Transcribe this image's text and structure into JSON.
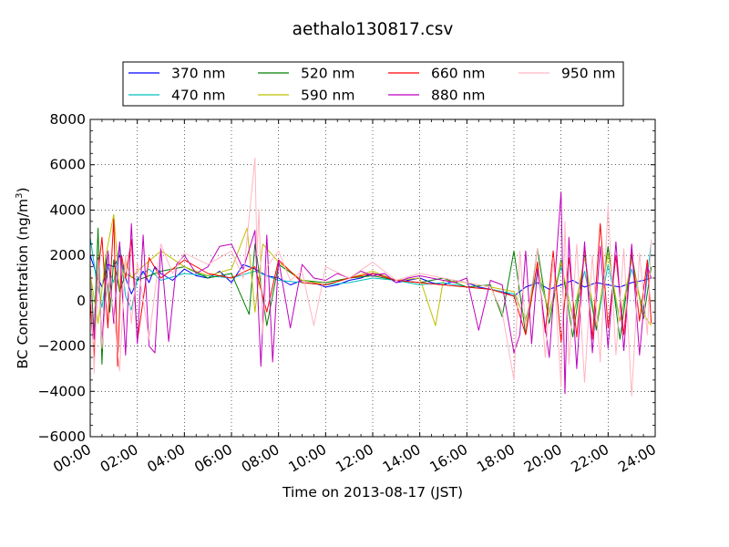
{
  "chart_data": {
    "type": "line",
    "title": "aethalo130817.csv",
    "xlabel": "Time on 2013-08-17 (JST)",
    "ylabel": "BC Concentration (ng/m³)",
    "ylabel_main": "BC Concentration (ng/m",
    "ylabel_sup": "3",
    "ylabel_end": ")",
    "xlim": [
      "00:00",
      "24:00"
    ],
    "ylim": [
      -6000,
      8000
    ],
    "x_ticks": [
      "00:00",
      "02:00",
      "04:00",
      "06:00",
      "08:00",
      "10:00",
      "12:00",
      "14:00",
      "16:00",
      "18:00",
      "20:00",
      "22:00",
      "24:00"
    ],
    "y_ticks": [
      8000,
      6000,
      4000,
      2000,
      0,
      -2000,
      -4000,
      -6000
    ],
    "y_tick_labels": [
      "8000",
      "6000",
      "4000",
      "2000",
      "0",
      "−2000",
      "−4000",
      "−6000"
    ],
    "grid": true,
    "legend_position": "top",
    "series": [
      {
        "name": "370 nm",
        "color": "#0000ff",
        "x": [
          "00:00",
          "00:15",
          "00:30",
          "00:45",
          "01:00",
          "01:15",
          "01:30",
          "01:45",
          "02:00",
          "02:15",
          "02:30",
          "02:45",
          "03:00",
          "03:30",
          "04:00",
          "04:30",
          "05:00",
          "05:30",
          "06:00",
          "06:30",
          "07:00",
          "07:30",
          "08:00",
          "08:30",
          "09:00",
          "09:30",
          "10:00",
          "10:30",
          "11:00",
          "11:30",
          "12:00",
          "12:30",
          "13:00",
          "13:30",
          "14:00",
          "14:30",
          "15:00",
          "15:30",
          "16:00",
          "16:30",
          "17:00",
          "17:30",
          "18:00",
          "18:30",
          "19:00",
          "19:30",
          "20:00",
          "20:30",
          "21:00",
          "21:30",
          "22:00",
          "22:30",
          "23:00",
          "23:30",
          "23:50"
        ],
        "y": [
          2000,
          1200,
          600,
          1600,
          1500,
          2000,
          1000,
          300,
          900,
          1300,
          800,
          1500,
          1200,
          900,
          1400,
          1100,
          1000,
          1300,
          800,
          1600,
          1400,
          1100,
          1000,
          700,
          900,
          800,
          600,
          700,
          900,
          1000,
          1200,
          1100,
          800,
          900,
          1000,
          800,
          700,
          900,
          800,
          600,
          500,
          400,
          200,
          600,
          800,
          500,
          700,
          900,
          600,
          800,
          700,
          600,
          800,
          900,
          1000
        ]
      },
      {
        "name": "470 nm",
        "color": "#00bfbf",
        "x": [
          "00:00",
          "00:15",
          "00:30",
          "00:45",
          "01:00",
          "01:15",
          "01:30",
          "01:45",
          "02:00",
          "02:30",
          "03:00",
          "04:00",
          "05:00",
          "06:00",
          "07:00",
          "08:00",
          "09:00",
          "10:00",
          "11:00",
          "12:00",
          "13:00",
          "14:00",
          "15:00",
          "16:00",
          "17:00",
          "18:00",
          "18:30",
          "19:00",
          "19:30",
          "20:00",
          "20:30",
          "21:00",
          "21:30",
          "22:00",
          "22:30",
          "23:00",
          "23:30",
          "23:50"
        ],
        "y": [
          2800,
          1000,
          -300,
          1500,
          800,
          2500,
          200,
          -400,
          1000,
          1400,
          900,
          1200,
          1100,
          1000,
          1300,
          900,
          800,
          700,
          800,
          1000,
          900,
          700,
          800,
          600,
          500,
          300,
          -800,
          1200,
          -500,
          1500,
          -700,
          1300,
          -1200,
          1600,
          -900,
          1400,
          -400,
          2600
        ]
      },
      {
        "name": "520 nm",
        "color": "#008000",
        "x": [
          "00:00",
          "00:10",
          "00:20",
          "00:30",
          "00:40",
          "00:50",
          "01:00",
          "01:15",
          "01:30",
          "02:00",
          "03:00",
          "04:00",
          "05:00",
          "06:00",
          "06:45",
          "07:00",
          "07:30",
          "08:00",
          "09:00",
          "10:00",
          "11:00",
          "12:00",
          "13:00",
          "14:00",
          "15:00",
          "16:00",
          "17:00",
          "17:30",
          "18:00",
          "18:30",
          "19:00",
          "19:30",
          "20:00",
          "20:30",
          "21:00",
          "21:30",
          "22:00",
          "22:30",
          "23:00",
          "23:30",
          "23:50"
        ],
        "y": [
          1500,
          -1500,
          3200,
          -2800,
          2000,
          -500,
          1800,
          400,
          1200,
          900,
          1300,
          1500,
          1000,
          1200,
          -600,
          2500,
          -1100,
          1600,
          900,
          800,
          1000,
          1100,
          900,
          800,
          1000,
          600,
          700,
          -700,
          2200,
          -1500,
          2300,
          -1000,
          1800,
          -1600,
          2000,
          -1300,
          2400,
          -1700,
          2000,
          -800,
          1500
        ]
      },
      {
        "name": "590 nm",
        "color": "#bfbf00",
        "x": [
          "00:00",
          "00:20",
          "00:40",
          "01:00",
          "01:15",
          "01:30",
          "01:45",
          "02:00",
          "03:00",
          "04:00",
          "05:00",
          "06:00",
          "06:40",
          "07:00",
          "07:20",
          "08:00",
          "09:00",
          "10:00",
          "11:00",
          "12:00",
          "13:00",
          "14:00",
          "14:40",
          "15:00",
          "16:00",
          "17:00",
          "18:00",
          "18:30",
          "19:00",
          "19:30",
          "20:00",
          "20:30",
          "21:00",
          "21:30",
          "22:00",
          "22:30",
          "23:00",
          "23:30",
          "23:50"
        ],
        "y": [
          1200,
          -1000,
          2000,
          3800,
          500,
          1800,
          1000,
          1300,
          2200,
          1500,
          1100,
          1400,
          3200,
          -500,
          2500,
          1700,
          900,
          700,
          1000,
          1300,
          900,
          1000,
          -1100,
          900,
          800,
          600,
          400,
          -900,
          1500,
          -600,
          1700,
          -800,
          1900,
          -1100,
          2100,
          -900,
          1800,
          -600,
          -1100
        ]
      },
      {
        "name": "660 nm",
        "color": "#ff0000",
        "x": [
          "00:00",
          "00:10",
          "00:20",
          "00:30",
          "00:45",
          "01:00",
          "01:10",
          "01:20",
          "01:30",
          "01:45",
          "02:00",
          "02:30",
          "03:00",
          "03:30",
          "04:00",
          "05:00",
          "06:00",
          "07:00",
          "07:30",
          "08:00",
          "09:00",
          "10:00",
          "11:00",
          "12:00",
          "13:00",
          "14:00",
          "15:00",
          "16:00",
          "17:00",
          "18:00",
          "18:30",
          "19:00",
          "19:20",
          "19:40",
          "20:00",
          "20:20",
          "20:40",
          "21:00",
          "21:20",
          "21:40",
          "22:00",
          "22:20",
          "22:40",
          "23:00",
          "23:20",
          "23:40",
          "23:50"
        ],
        "y": [
          0,
          -2500,
          1200,
          2800,
          -1200,
          3600,
          -2900,
          2000,
          1000,
          2700,
          -1800,
          1900,
          1000,
          1400,
          1800,
          1200,
          1000,
          1500,
          -500,
          1800,
          800,
          700,
          1000,
          1200,
          900,
          800,
          700,
          600,
          500,
          200,
          -1500,
          1700,
          -1400,
          2200,
          -1800,
          1900,
          -1600,
          2400,
          -1700,
          3400,
          -1200,
          2000,
          -1500,
          2200,
          -900,
          1800,
          -1000
        ]
      },
      {
        "name": "880 nm",
        "color": "#bf00bf",
        "x": [
          "00:00",
          "00:10",
          "00:20",
          "00:30",
          "00:45",
          "01:00",
          "01:15",
          "01:30",
          "01:45",
          "02:00",
          "02:15",
          "02:30",
          "02:45",
          "03:00",
          "03:20",
          "03:40",
          "04:00",
          "04:30",
          "05:00",
          "05:30",
          "06:00",
          "06:30",
          "07:00",
          "07:15",
          "07:30",
          "07:45",
          "08:00",
          "08:30",
          "09:00",
          "09:30",
          "10:00",
          "10:30",
          "11:00",
          "11:30",
          "12:00",
          "12:30",
          "13:00",
          "13:30",
          "14:00",
          "14:30",
          "15:00",
          "15:30",
          "16:00",
          "16:30",
          "17:00",
          "17:30",
          "18:00",
          "18:15",
          "18:30",
          "18:45",
          "19:00",
          "19:30",
          "20:00",
          "20:10",
          "20:20",
          "20:40",
          "21:00",
          "21:20",
          "21:40",
          "22:00",
          "22:20",
          "22:40",
          "23:00",
          "23:20",
          "23:40",
          "23:50"
        ],
        "y": [
          800,
          -1700,
          1900,
          -1900,
          2200,
          -1000,
          2600,
          -2400,
          3400,
          -1900,
          2900,
          -2000,
          -2300,
          2300,
          -1800,
          1600,
          2000,
          1200,
          1500,
          2400,
          2500,
          1400,
          3100,
          -2900,
          2900,
          -2700,
          1800,
          -1200,
          1600,
          1000,
          900,
          1200,
          1000,
          1300,
          1100,
          1200,
          800,
          1000,
          1100,
          1000,
          900,
          800,
          1000,
          -1300,
          900,
          700,
          -2300,
          -1500,
          2200,
          -1900,
          1400,
          -2500,
          4800,
          -4100,
          2800,
          -3000,
          2600,
          -2300,
          2400,
          -2100,
          2600,
          -2200,
          2500,
          -2400,
          1500,
          1000
        ]
      },
      {
        "name": "950 nm",
        "color": "#ffb6c1",
        "x": [
          "00:00",
          "00:10",
          "00:20",
          "00:30",
          "00:45",
          "01:00",
          "01:15",
          "01:30",
          "01:45",
          "02:00",
          "02:30",
          "03:00",
          "03:30",
          "04:00",
          "05:00",
          "06:00",
          "06:30",
          "07:00",
          "07:05",
          "07:10",
          "07:20",
          "07:30",
          "08:00",
          "08:30",
          "09:00",
          "09:30",
          "10:00",
          "11:00",
          "12:00",
          "13:00",
          "14:00",
          "15:00",
          "16:00",
          "17:00",
          "17:30",
          "18:00",
          "18:15",
          "18:30",
          "19:00",
          "19:20",
          "19:40",
          "20:00",
          "20:10",
          "20:20",
          "20:40",
          "21:00",
          "21:20",
          "21:40",
          "22:00",
          "22:20",
          "22:40",
          "23:00",
          "23:20",
          "23:40",
          "23:50"
        ],
        "y": [
          1500,
          -3200,
          1800,
          -2100,
          1000,
          -500,
          -3100,
          2000,
          -1000,
          1700,
          -1700,
          2500,
          1200,
          2100,
          1600,
          2200,
          1000,
          6300,
          2000,
          4000,
          -1500,
          1500,
          2200,
          900,
          1300,
          -1100,
          1500,
          1000,
          1700,
          900,
          1200,
          1000,
          800,
          600,
          -500,
          -3500,
          2200,
          -1200,
          2300,
          -2500,
          1900,
          -3800,
          3500,
          -2800,
          2500,
          -3600,
          2000,
          -2700,
          4200,
          -2400,
          2300,
          -4200,
          2100,
          -1500,
          2700
        ]
      }
    ]
  }
}
